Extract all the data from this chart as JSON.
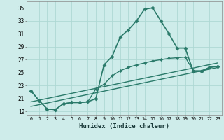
{
  "xlabel": "Humidex (Indice chaleur)",
  "background_color": "#ceecea",
  "grid_color": "#aed8d4",
  "line_color": "#2a7a6a",
  "xlim": [
    -0.5,
    23.5
  ],
  "ylim": [
    18.5,
    36.0
  ],
  "yticks": [
    19,
    21,
    23,
    25,
    27,
    29,
    31,
    33,
    35
  ],
  "xticks": [
    0,
    1,
    2,
    3,
    4,
    5,
    6,
    7,
    8,
    9,
    10,
    11,
    12,
    13,
    14,
    15,
    16,
    17,
    18,
    19,
    20,
    21,
    22,
    23
  ],
  "series": [
    {
      "x": [
        0,
        1,
        2,
        3,
        4,
        5,
        6,
        7,
        8,
        9,
        10,
        11,
        12,
        13,
        14,
        15,
        16,
        17,
        18,
        19,
        20,
        21,
        22,
        23
      ],
      "y": [
        22.2,
        20.7,
        19.4,
        19.3,
        20.2,
        20.4,
        20.4,
        20.5,
        21.0,
        26.2,
        27.5,
        30.5,
        31.6,
        33.0,
        34.8,
        35.0,
        33.0,
        31.0,
        28.8,
        28.8,
        25.2,
        25.2,
        25.8,
        26.0
      ],
      "marker": "D",
      "markersize": 2.5,
      "linewidth": 1.2
    },
    {
      "x": [
        0,
        1,
        2,
        3,
        4,
        5,
        6,
        7,
        8,
        9,
        10,
        11,
        12,
        13,
        14,
        15,
        16,
        17,
        18,
        19,
        20,
        21,
        22,
        23
      ],
      "y": [
        22.2,
        20.7,
        19.4,
        19.3,
        20.2,
        20.4,
        20.4,
        20.5,
        22.5,
        23.2,
        24.5,
        25.3,
        25.8,
        26.2,
        26.5,
        26.8,
        27.0,
        27.2,
        27.3,
        27.4,
        25.3,
        25.3,
        25.8,
        26.0
      ],
      "marker": "D",
      "markersize": 2.0,
      "linewidth": 1.0
    },
    {
      "x": [
        0,
        23
      ],
      "y": [
        20.5,
        26.5
      ],
      "marker": null,
      "markersize": 0,
      "linewidth": 1.0
    },
    {
      "x": [
        0,
        23
      ],
      "y": [
        19.8,
        25.8
      ],
      "marker": null,
      "markersize": 0,
      "linewidth": 1.0
    }
  ]
}
